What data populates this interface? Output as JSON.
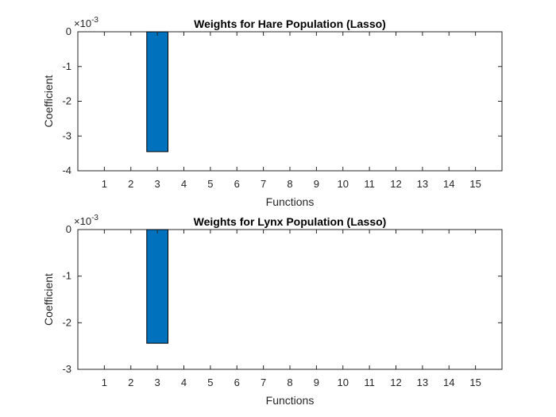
{
  "chart_data": [
    {
      "type": "bar",
      "title": "Weights for Hare Population (Lasso)",
      "xlabel": "Functions",
      "ylabel": "Coefficient",
      "exponent_label": "×10",
      "exponent_power": "-3",
      "categories": [
        "1",
        "2",
        "3",
        "4",
        "5",
        "6",
        "7",
        "8",
        "9",
        "10",
        "11",
        "12",
        "13",
        "14",
        "15"
      ],
      "values": [
        0,
        0,
        -0.00345,
        0,
        0,
        0,
        0,
        0,
        0,
        0,
        0,
        0,
        0,
        0,
        0
      ],
      "ylim": [
        -0.004,
        0
      ],
      "yticks": [
        0,
        -0.001,
        -0.002,
        -0.003,
        -0.004
      ],
      "yticklabels": [
        "0",
        "-1",
        "-2",
        "-3",
        "-4"
      ],
      "xlim": [
        0,
        16
      ],
      "bar_color": "#0072BD",
      "grid": false
    },
    {
      "type": "bar",
      "title": "Weights for Lynx Population (Lasso)",
      "xlabel": "Functions",
      "ylabel": "Coefficient",
      "exponent_label": "×10",
      "exponent_power": "-3",
      "categories": [
        "1",
        "2",
        "3",
        "4",
        "5",
        "6",
        "7",
        "8",
        "9",
        "10",
        "11",
        "12",
        "13",
        "14",
        "15"
      ],
      "values": [
        0,
        0,
        -0.00244,
        0,
        0,
        0,
        0,
        0,
        0,
        0,
        0,
        0,
        0,
        0,
        0
      ],
      "ylim": [
        -0.003,
        0
      ],
      "yticks": [
        0,
        -0.001,
        -0.002,
        -0.003
      ],
      "yticklabels": [
        "0",
        "-1",
        "-2",
        "-3"
      ],
      "xlim": [
        0,
        16
      ],
      "bar_color": "#0072BD",
      "grid": false
    }
  ]
}
